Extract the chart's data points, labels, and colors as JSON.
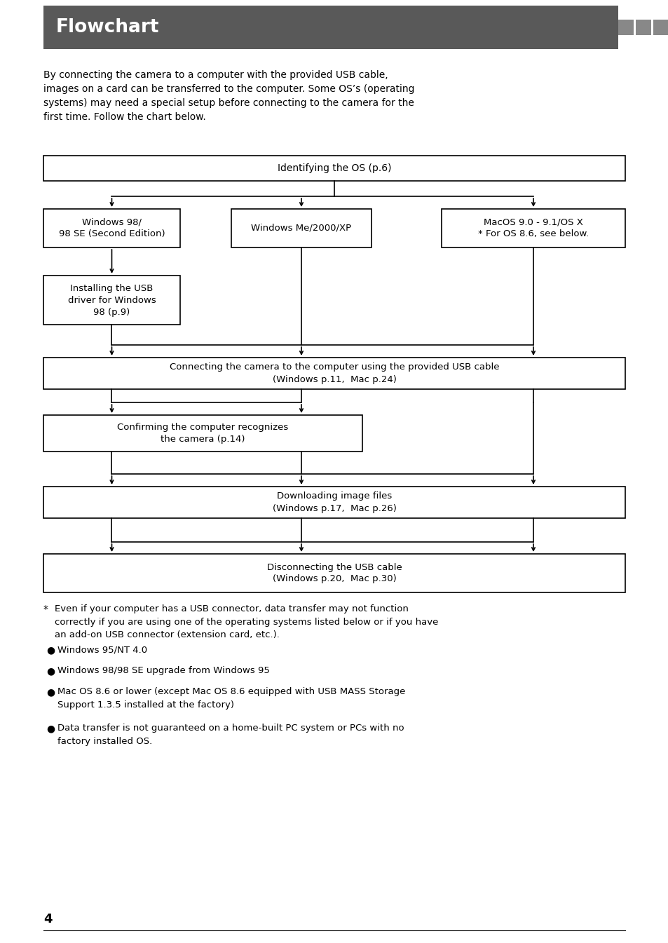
{
  "title": "Flowchart",
  "title_bg": "#595959",
  "title_color": "#ffffff",
  "bg_color": "#ffffff",
  "intro_text": "By connecting the camera to a computer with the provided USB cable,\nimages on a card can be transferred to the computer. Some OS’s (operating\nsystems) may need a special setup before connecting to the camera for the\nfirst time. Follow the chart below.",
  "page_number": "4",
  "fig_w": 9.54,
  "fig_h": 13.45,
  "dpi": 100
}
